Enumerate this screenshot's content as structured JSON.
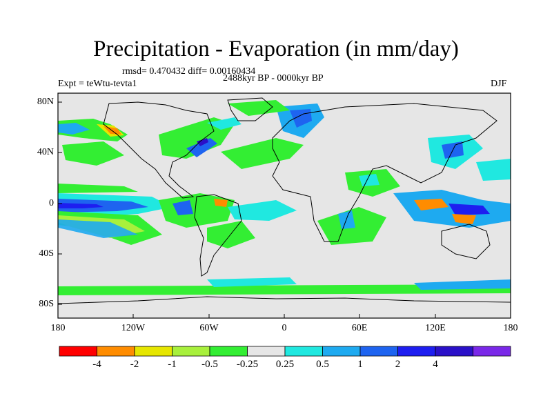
{
  "title": "Precipitation - Evaporation (in mm/day)",
  "stats": "rmsd= 0.470432 diff= 0.00160434",
  "period": "2488kyr BP - 0000kyr BP",
  "experiment": "Expt = teWtu-tevta1",
  "season": "DJF",
  "lat_labels": [
    "80N",
    "40N",
    "0",
    "40S",
    "80S"
  ],
  "lon_labels": [
    "180",
    "120W",
    "60W",
    "0",
    "60E",
    "120E",
    "180"
  ],
  "colorbar": {
    "colors": [
      "#ff0000",
      "#ff8c00",
      "#e6e600",
      "#a8f03c",
      "#33ee33",
      "#e6e6e6",
      "#20e8e0",
      "#1eaaf0",
      "#1e64f0",
      "#1e1ef0",
      "#2a10c8",
      "#7a28e8"
    ],
    "labels": [
      "-4",
      "-2",
      "-1",
      "-0.5",
      "-0.25",
      "0.25",
      "0.5",
      "1",
      "2",
      "4"
    ]
  },
  "palette": {
    "land_ocean_background": "#e6e6e6",
    "coastline": "#000000"
  }
}
